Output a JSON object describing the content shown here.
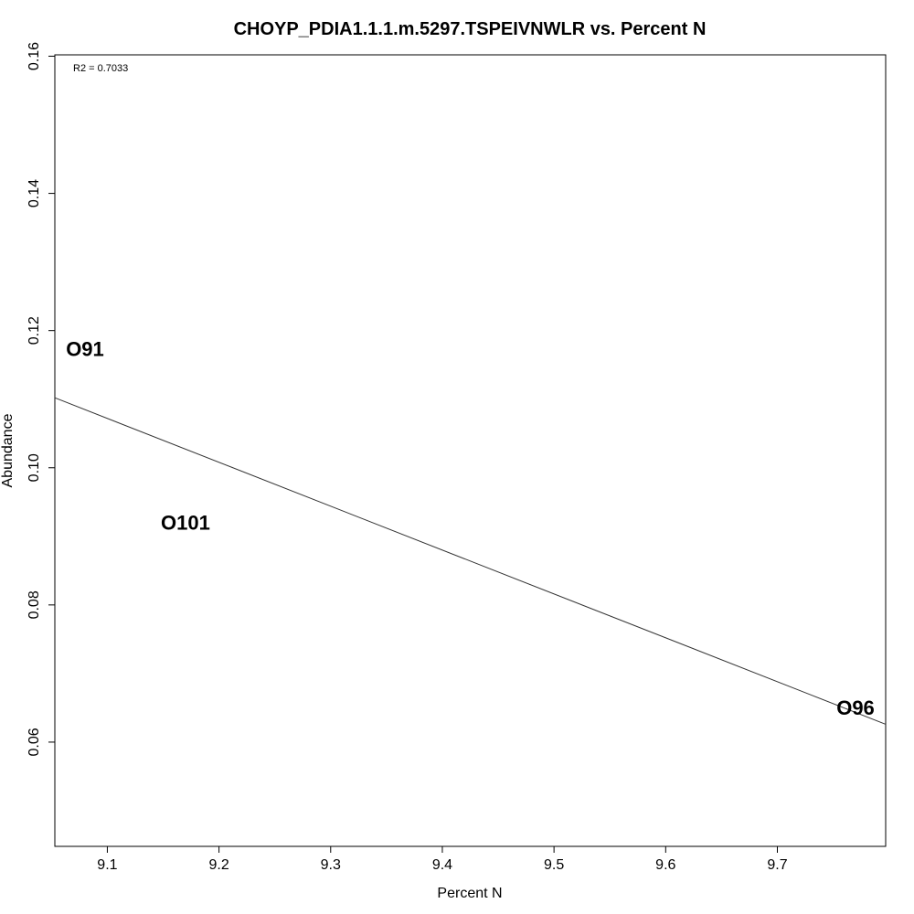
{
  "chart_data": {
    "type": "scatter",
    "title": "CHOYP_PDIA1.1.1.m.5297.TSPEIVNWLR vs. Percent N",
    "xlabel": "Percent N",
    "ylabel": "Abundance",
    "annotation": "R2 = 0.7033",
    "xlim": [
      9.053,
      9.797
    ],
    "ylim": [
      0.0448,
      0.1602
    ],
    "xticks": [
      "9.1",
      "9.2",
      "9.3",
      "9.4",
      "9.5",
      "9.6",
      "9.7"
    ],
    "xtick_values": [
      9.1,
      9.2,
      9.3,
      9.4,
      9.5,
      9.6,
      9.7
    ],
    "yticks": [
      "0.06",
      "0.08",
      "0.10",
      "0.12",
      "0.14",
      "0.16"
    ],
    "ytick_values": [
      0.06,
      0.08,
      0.1,
      0.12,
      0.14,
      0.16
    ],
    "points": [
      {
        "label": "O91",
        "x": 9.08,
        "y": 0.1173
      },
      {
        "label": "O101",
        "x": 9.17,
        "y": 0.092
      },
      {
        "label": "O96",
        "x": 9.77,
        "y": 0.065
      }
    ],
    "trendline": {
      "x": [
        9.053,
        9.797
      ],
      "y": [
        0.1102,
        0.0626
      ]
    },
    "grid": false,
    "legend": "none"
  }
}
